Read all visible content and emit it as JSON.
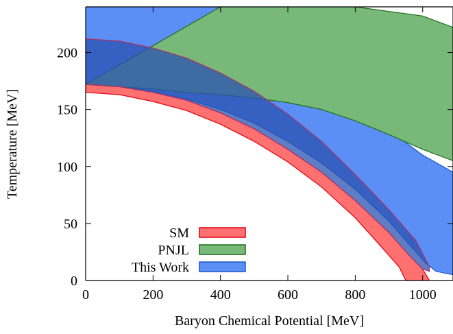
{
  "chart_data": {
    "type": "area",
    "xlabel": "Baryon Chemical Potential  [MeV]",
    "ylabel": "Temperature  [MeV]",
    "xlim": [
      0,
      1090
    ],
    "ylim": [
      0,
      240
    ],
    "x_ticks": [
      0,
      200,
      400,
      600,
      800,
      1000
    ],
    "y_ticks": [
      0,
      50,
      100,
      150,
      200
    ],
    "x_tick_labels": [
      "0",
      "200",
      "400",
      "600",
      "800",
      "1000"
    ],
    "y_tick_labels": [
      "0",
      "50",
      "100",
      "150",
      "200"
    ],
    "legend_position": "bottom-left",
    "series": [
      {
        "name": "SM",
        "fill_color": "#ff7070",
        "edge_color": "#e0000f",
        "upper": [
          [
            0,
            172
          ],
          [
            100,
            170
          ],
          [
            200,
            165
          ],
          [
            300,
            158
          ],
          [
            400,
            147
          ],
          [
            500,
            133
          ],
          [
            600,
            115
          ],
          [
            700,
            95
          ],
          [
            800,
            70
          ],
          [
            900,
            42
          ],
          [
            960,
            22
          ],
          [
            1000,
            10
          ],
          [
            1020,
            0
          ]
        ],
        "lower": [
          [
            0,
            165
          ],
          [
            100,
            163
          ],
          [
            200,
            157
          ],
          [
            300,
            149
          ],
          [
            400,
            137
          ],
          [
            500,
            122
          ],
          [
            600,
            104
          ],
          [
            700,
            82
          ],
          [
            800,
            55
          ],
          [
            870,
            32
          ],
          [
            930,
            12
          ],
          [
            950,
            0
          ]
        ]
      },
      {
        "name": "PNJL",
        "fill_color": "#78b878",
        "edge_color": "#1a6e1a",
        "upper": [
          [
            400,
            240
          ],
          [
            600,
            240
          ],
          [
            800,
            240
          ],
          [
            1000,
            232
          ],
          [
            1090,
            222
          ]
        ],
        "lower": [
          [
            0,
            172
          ],
          [
            100,
            170
          ],
          [
            200,
            168
          ],
          [
            300,
            165
          ],
          [
            400,
            163
          ],
          [
            500,
            160
          ],
          [
            600,
            156
          ],
          [
            700,
            150
          ],
          [
            800,
            140
          ],
          [
            900,
            128
          ],
          [
            1000,
            115
          ],
          [
            1090,
            105
          ]
        ]
      },
      {
        "name": "This Work",
        "fill_color": "#5b8ff5",
        "edge_color": "#1a56c8",
        "upper": [
          [
            0,
            240
          ],
          [
            390,
            240
          ],
          [
            500,
            220
          ],
          [
            600,
            200
          ],
          [
            700,
            178
          ],
          [
            800,
            155
          ],
          [
            900,
            132
          ],
          [
            1000,
            110
          ],
          [
            1090,
            95
          ]
        ],
        "lower": [
          [
            0,
            172
          ],
          [
            100,
            170
          ],
          [
            200,
            166
          ],
          [
            300,
            159
          ],
          [
            400,
            150
          ],
          [
            500,
            138
          ],
          [
            600,
            122
          ],
          [
            700,
            103
          ],
          [
            800,
            80
          ],
          [
            900,
            52
          ],
          [
            950,
            35
          ],
          [
            980,
            25
          ],
          [
            1010,
            15
          ],
          [
            1040,
            8
          ],
          [
            1090,
            5
          ]
        ]
      },
      {
        "name": "",
        "fill_color": "#2a52b0",
        "edge_color": "#b03060",
        "upper": [
          [
            0,
            212
          ],
          [
            100,
            210
          ],
          [
            200,
            204
          ],
          [
            300,
            195
          ],
          [
            400,
            182
          ],
          [
            500,
            166
          ],
          [
            600,
            146
          ],
          [
            700,
            122
          ],
          [
            800,
            93
          ],
          [
            900,
            62
          ],
          [
            980,
            35
          ],
          [
            1020,
            12
          ]
        ],
        "lower": [
          [
            0,
            172
          ],
          [
            100,
            170
          ],
          [
            200,
            165
          ],
          [
            300,
            158
          ],
          [
            400,
            147
          ],
          [
            500,
            133
          ],
          [
            600,
            115
          ],
          [
            700,
            95
          ],
          [
            800,
            70
          ],
          [
            900,
            42
          ],
          [
            960,
            22
          ],
          [
            1000,
            10
          ],
          [
            1020,
            8
          ]
        ]
      }
    ]
  }
}
